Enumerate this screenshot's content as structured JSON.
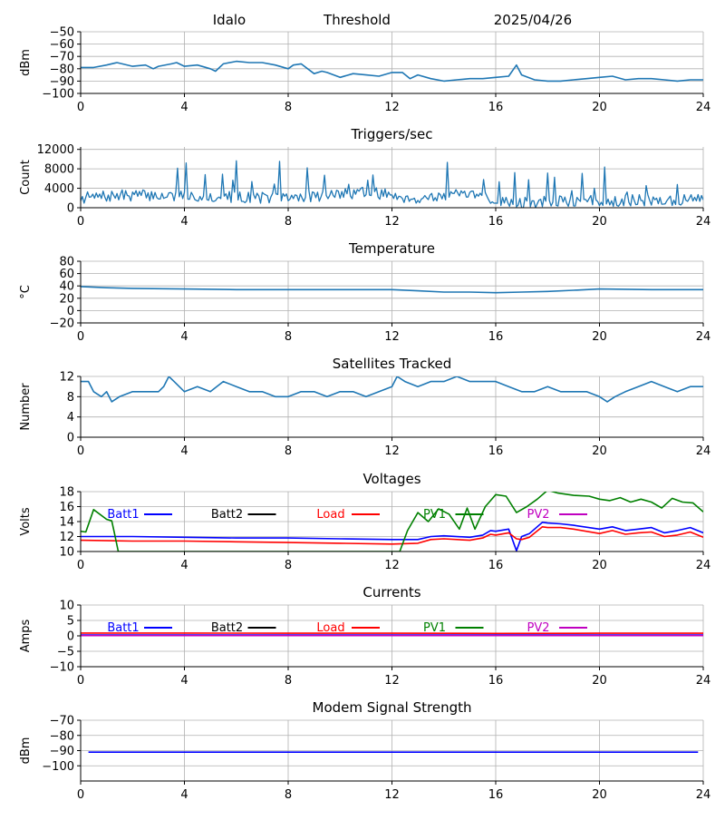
{
  "header": {
    "station": "Idalo",
    "label": "Threshold",
    "date": "2025/04/26"
  },
  "chart_data": [
    {
      "type": "line",
      "title": "",
      "ylabel": "dBm",
      "xlim": [
        0,
        24
      ],
      "ylim": [
        -100,
        -50
      ],
      "xticks": [
        "0",
        "4",
        "8",
        "12",
        "16",
        "20",
        "24"
      ],
      "yticks": [
        -100,
        -90,
        -80,
        -70,
        -60,
        -50
      ],
      "ytick_labels": [
        "−100",
        "−90",
        "−80",
        "−70",
        "−60",
        "−50"
      ],
      "grid": true,
      "series": [
        {
          "color": "#1f77b4",
          "x": [
            0,
            0.5,
            1,
            1.4,
            2,
            2.5,
            2.8,
            3,
            3.5,
            3.7,
            4,
            4.5,
            5,
            5.2,
            5.5,
            6,
            6.5,
            7,
            7.5,
            8,
            8.2,
            8.5,
            9,
            9.3,
            9.5,
            10,
            10.5,
            11,
            11.5,
            12,
            12.4,
            12.7,
            13,
            13.5,
            14,
            14.5,
            15,
            15.5,
            16,
            16.5,
            16.8,
            17,
            17.5,
            18,
            18.5,
            19,
            19.5,
            20,
            20.5,
            21,
            21.5,
            22,
            22.5,
            23,
            23.5,
            24
          ],
          "y": [
            -79,
            -79,
            -77,
            -75,
            -78,
            -77,
            -80,
            -78,
            -76,
            -75,
            -78,
            -77,
            -80,
            -82,
            -76,
            -74,
            -75,
            -75,
            -77,
            -80,
            -77,
            -76,
            -84,
            -82,
            -83,
            -87,
            -84,
            -85,
            -86,
            -83,
            -83,
            -88,
            -85,
            -88,
            -90,
            -89,
            -88,
            -88,
            -87,
            -86,
            -77,
            -85,
            -89,
            -90,
            -90,
            -89,
            -88,
            -87,
            -86,
            -89,
            -88,
            -88,
            -89,
            -90,
            -89,
            -89
          ]
        }
      ]
    },
    {
      "type": "line",
      "title": "Triggers/sec",
      "ylabel": "Count",
      "xlim": [
        0,
        24
      ],
      "ylim": [
        0,
        12500
      ],
      "xticks": [
        "0",
        "4",
        "8",
        "12",
        "16",
        "20",
        "24"
      ],
      "yticks": [
        0,
        4000,
        8000,
        12000
      ],
      "ytick_labels": [
        "0",
        "4000",
        "8000",
        "12000"
      ],
      "grid": true,
      "noise": {
        "seed": 7,
        "count": 360,
        "base": 1800,
        "spread": 1200,
        "burst_prob": 0.08,
        "burst_max": 6500
      },
      "series": [
        {
          "color": "#1f77b4",
          "x": [
            0,
            2,
            4,
            6,
            8,
            10,
            11,
            12,
            13,
            14,
            15,
            16,
            17,
            18,
            20,
            22,
            24
          ],
          "y": [
            2000,
            2600,
            2400,
            2200,
            2000,
            2800,
            3200,
            2600,
            1800,
            2600,
            2400,
            1600,
            1000,
            1200,
            1400,
            1500,
            1700
          ]
        }
      ]
    },
    {
      "type": "line",
      "title": "Temperature",
      "ylabel": "°C",
      "xlim": [
        0,
        24
      ],
      "ylim": [
        -20,
        80
      ],
      "xticks": [
        "0",
        "4",
        "8",
        "12",
        "16",
        "20",
        "24"
      ],
      "yticks": [
        -20,
        0,
        20,
        40,
        60,
        80
      ],
      "ytick_labels": [
        "−20",
        "0",
        "20",
        "40",
        "60",
        "80"
      ],
      "grid": true,
      "series": [
        {
          "color": "#1f77b4",
          "x": [
            0,
            1,
            2,
            4,
            6,
            8,
            10,
            12,
            13,
            14,
            15,
            16,
            17,
            18,
            19,
            20,
            22,
            24
          ],
          "y": [
            39,
            37,
            36,
            35,
            34,
            34,
            34,
            34,
            32,
            30,
            30,
            29,
            30,
            31,
            33,
            35,
            34,
            34
          ]
        }
      ]
    },
    {
      "type": "line",
      "title": "Satellites Tracked",
      "ylabel": "Number",
      "xlim": [
        0,
        24
      ],
      "ylim": [
        0,
        12
      ],
      "xticks": [
        "0",
        "4",
        "8",
        "12",
        "16",
        "20",
        "24"
      ],
      "yticks": [
        0,
        4,
        8,
        12
      ],
      "ytick_labels": [
        "0",
        "4",
        "8",
        "12"
      ],
      "grid": true,
      "series": [
        {
          "color": "#1f77b4",
          "x": [
            0,
            0.3,
            0.5,
            0.8,
            1,
            1.2,
            1.5,
            2,
            2.5,
            3,
            3.2,
            3.4,
            3.6,
            3.8,
            4,
            4.5,
            5,
            5.5,
            6,
            6.5,
            7,
            7.5,
            8,
            8.5,
            9,
            9.5,
            10,
            10.5,
            11,
            11.5,
            12,
            12.2,
            12.5,
            13,
            13.5,
            14,
            14.5,
            15,
            15.5,
            16,
            16.5,
            17,
            17.5,
            18,
            18.5,
            19,
            19.5,
            20,
            20.3,
            20.6,
            21,
            21.5,
            22,
            22.5,
            23,
            23.5,
            24
          ],
          "y": [
            11,
            11,
            9,
            8,
            9,
            7,
            8,
            9,
            9,
            9,
            10,
            12,
            11,
            10,
            9,
            10,
            9,
            11,
            10,
            9,
            9,
            8,
            8,
            9,
            9,
            8,
            9,
            9,
            8,
            9,
            10,
            12,
            11,
            10,
            11,
            11,
            12,
            11,
            11,
            11,
            10,
            9,
            9,
            10,
            9,
            9,
            9,
            8,
            7,
            8,
            9,
            10,
            11,
            10,
            9,
            10,
            10
          ]
        }
      ]
    },
    {
      "type": "line",
      "title": "Voltages",
      "ylabel": "Volts",
      "xlim": [
        0,
        24
      ],
      "ylim": [
        10,
        18
      ],
      "xticks": [
        "0",
        "4",
        "8",
        "12",
        "16",
        "20",
        "24"
      ],
      "yticks": [
        10,
        12,
        14,
        16,
        18
      ],
      "ytick_labels": [
        "10",
        "12",
        "14",
        "16",
        "18"
      ],
      "grid": true,
      "legend": [
        {
          "name": "Batt1",
          "color": "#0000ff"
        },
        {
          "name": "Batt2",
          "color": "#000000"
        },
        {
          "name": "Load",
          "color": "#ff0000"
        },
        {
          "name": "PV1",
          "color": "#008000"
        },
        {
          "name": "PV2",
          "color": "#c000c0"
        }
      ],
      "series": [
        {
          "name": "Batt1",
          "color": "#0000ff",
          "x": [
            0,
            2,
            4,
            6,
            8,
            10,
            12,
            13,
            13.5,
            14,
            15,
            15.5,
            15.8,
            16,
            16.5,
            16.8,
            17,
            17.3,
            17.8,
            18,
            18.5,
            19,
            20,
            20.5,
            21,
            21.5,
            22,
            22.5,
            23,
            23.5,
            24
          ],
          "y": [
            12.0,
            12.0,
            11.9,
            11.8,
            11.8,
            11.7,
            11.6,
            11.6,
            12.0,
            12.1,
            11.9,
            12.2,
            12.8,
            12.7,
            13.0,
            10.1,
            12.0,
            12.4,
            13.9,
            13.8,
            13.7,
            13.5,
            13.0,
            13.3,
            12.8,
            13.0,
            13.2,
            12.5,
            12.8,
            13.2,
            12.5
          ]
        },
        {
          "name": "Load",
          "color": "#ff0000",
          "x": [
            0,
            2,
            4,
            6,
            8,
            10,
            12,
            13,
            13.5,
            14,
            15,
            15.5,
            15.8,
            16,
            16.5,
            16.8,
            17,
            17.3,
            17.8,
            18,
            18.5,
            19,
            20,
            20.5,
            21,
            21.5,
            22,
            22.5,
            23,
            23.5,
            24
          ],
          "y": [
            11.5,
            11.4,
            11.4,
            11.3,
            11.2,
            11.1,
            11.0,
            11.1,
            11.6,
            11.7,
            11.5,
            11.8,
            12.3,
            12.2,
            12.5,
            11.7,
            11.6,
            11.9,
            13.3,
            13.2,
            13.2,
            13.0,
            12.4,
            12.8,
            12.3,
            12.5,
            12.6,
            12.0,
            12.2,
            12.6,
            11.9
          ]
        },
        {
          "name": "PV1",
          "color": "#008000",
          "x": [
            0,
            0.2,
            0.5,
            1,
            1.2,
            1.3,
            1.45,
            12.3,
            12.6,
            13,
            13.4,
            13.8,
            14.2,
            14.6,
            14.9,
            15.2,
            15.6,
            15.8,
            16,
            16.4,
            16.8,
            17.2,
            17.6,
            18,
            18.4,
            19,
            19.6,
            20,
            20.4,
            20.8,
            21.2,
            21.6,
            22,
            22.4,
            22.8,
            23.2,
            23.6,
            24
          ],
          "y": [
            12.7,
            12.6,
            15.6,
            14.3,
            14.1,
            12.5,
            10.0,
            10.0,
            12.8,
            15.2,
            14.0,
            15.7,
            15.0,
            13.0,
            15.8,
            13.0,
            16.0,
            16.8,
            17.6,
            17.4,
            15.2,
            16.0,
            17.0,
            18.2,
            17.8,
            17.5,
            17.4,
            17.0,
            16.8,
            17.2,
            16.6,
            17.0,
            16.6,
            15.8,
            17.1,
            16.6,
            16.5,
            15.3
          ]
        }
      ]
    },
    {
      "type": "line",
      "title": "Currents",
      "ylabel": "Amps",
      "xlim": [
        0,
        24
      ],
      "ylim": [
        -10,
        10
      ],
      "xticks": [
        "0",
        "4",
        "8",
        "12",
        "16",
        "20",
        "24"
      ],
      "yticks": [
        -10,
        -5,
        0,
        5,
        10
      ],
      "ytick_labels": [
        "−10",
        "−5",
        "0",
        "5",
        "10"
      ],
      "grid": true,
      "legend": [
        {
          "name": "Batt1",
          "color": "#0000ff"
        },
        {
          "name": "Batt2",
          "color": "#000000"
        },
        {
          "name": "Load",
          "color": "#ff0000"
        },
        {
          "name": "PV1",
          "color": "#008000"
        },
        {
          "name": "PV2",
          "color": "#c000c0"
        }
      ],
      "series": [
        {
          "name": "Load",
          "color": "#ff0000",
          "x": [
            0,
            4,
            8,
            12,
            16,
            20,
            24
          ],
          "y": [
            0.9,
            0.9,
            0.85,
            0.85,
            0.8,
            0.85,
            0.85
          ]
        },
        {
          "name": "Batt1",
          "color": "#0000ff",
          "x": [
            0,
            4,
            8,
            12,
            16,
            20,
            24
          ],
          "y": [
            0.3,
            0.3,
            0.3,
            0.3,
            0.3,
            0.3,
            0.3
          ]
        },
        {
          "name": "PV2",
          "color": "#c000c0",
          "x": [
            0,
            4,
            8,
            12,
            16,
            20,
            24
          ],
          "y": [
            0.1,
            0.1,
            0.1,
            0.1,
            0.1,
            0.1,
            0.1
          ]
        }
      ]
    },
    {
      "type": "line",
      "title": "Modem Signal Strength",
      "ylabel": "dBm",
      "xlim": [
        0,
        24
      ],
      "ylim": [
        -110,
        -70
      ],
      "xticks": [
        "0",
        "4",
        "8",
        "12",
        "16",
        "20",
        "24"
      ],
      "yticks": [
        -100,
        -90,
        -80,
        -70
      ],
      "ytick_labels": [
        "−100",
        "−90",
        "−80",
        "−70"
      ],
      "grid": true,
      "series": [
        {
          "color": "#0000ff",
          "x": [
            0.3,
            23.8
          ],
          "y": [
            -91,
            -91
          ]
        }
      ]
    }
  ]
}
